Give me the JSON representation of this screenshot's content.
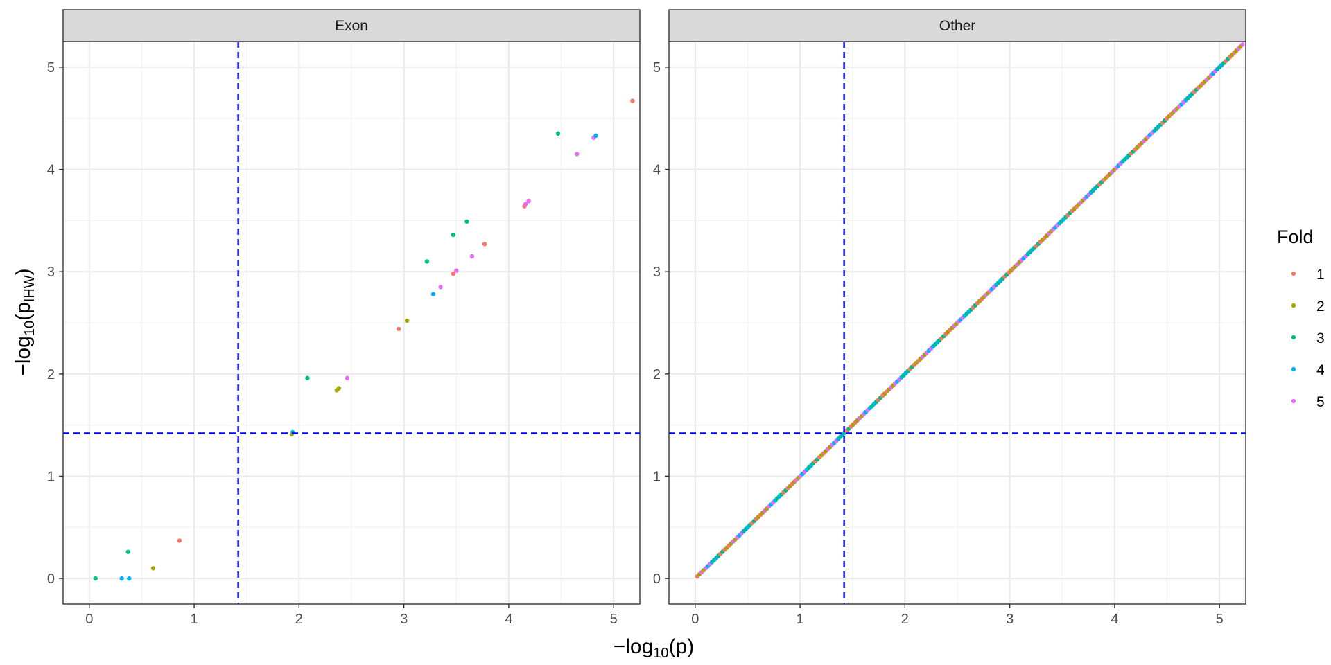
{
  "chart_data": {
    "type": "scatter",
    "facets": [
      {
        "label": "Exon",
        "points": [
          {
            "x": 0.06,
            "y": 0.0,
            "fold": "3"
          },
          {
            "x": 0.31,
            "y": 0.0,
            "fold": "4"
          },
          {
            "x": 0.38,
            "y": 0.0,
            "fold": "4"
          },
          {
            "x": 0.37,
            "y": 0.26,
            "fold": "3"
          },
          {
            "x": 0.61,
            "y": 0.1,
            "fold": "2"
          },
          {
            "x": 0.86,
            "y": 0.37,
            "fold": "1"
          },
          {
            "x": 1.93,
            "y": 1.41,
            "fold": "2"
          },
          {
            "x": 1.94,
            "y": 1.43,
            "fold": "4"
          },
          {
            "x": 2.08,
            "y": 1.96,
            "fold": "3"
          },
          {
            "x": 2.36,
            "y": 1.84,
            "fold": "2"
          },
          {
            "x": 2.38,
            "y": 1.86,
            "fold": "2"
          },
          {
            "x": 2.46,
            "y": 1.96,
            "fold": "5"
          },
          {
            "x": 2.95,
            "y": 2.44,
            "fold": "1"
          },
          {
            "x": 3.03,
            "y": 2.52,
            "fold": "2"
          },
          {
            "x": 3.22,
            "y": 3.1,
            "fold": "3"
          },
          {
            "x": 3.28,
            "y": 2.78,
            "fold": "4"
          },
          {
            "x": 3.35,
            "y": 2.85,
            "fold": "5"
          },
          {
            "x": 3.47,
            "y": 2.98,
            "fold": "1"
          },
          {
            "x": 3.47,
            "y": 3.36,
            "fold": "3"
          },
          {
            "x": 3.5,
            "y": 3.01,
            "fold": "5"
          },
          {
            "x": 3.6,
            "y": 3.49,
            "fold": "3"
          },
          {
            "x": 3.65,
            "y": 3.15,
            "fold": "5"
          },
          {
            "x": 3.77,
            "y": 3.27,
            "fold": "1"
          },
          {
            "x": 4.15,
            "y": 3.64,
            "fold": "1"
          },
          {
            "x": 4.16,
            "y": 3.66,
            "fold": "5"
          },
          {
            "x": 4.19,
            "y": 3.69,
            "fold": "5"
          },
          {
            "x": 4.47,
            "y": 4.35,
            "fold": "3"
          },
          {
            "x": 4.65,
            "y": 4.15,
            "fold": "5"
          },
          {
            "x": 4.81,
            "y": 4.31,
            "fold": "5"
          },
          {
            "x": 4.83,
            "y": 4.33,
            "fold": "4"
          },
          {
            "x": 5.18,
            "y": 4.67,
            "fold": "1"
          }
        ]
      },
      {
        "label": "Other",
        "points": [],
        "note": ""
      }
    ],
    "xlabel": "−log10(p)",
    "ylabel": "−log10(pIHW)",
    "xlim": [
      -0.25,
      5.25
    ],
    "ylim": [
      -0.25,
      5.25
    ],
    "x_ticks": [
      "0",
      "1",
      "2",
      "3",
      "4",
      "5"
    ],
    "y_ticks": [
      "0",
      "1",
      "2",
      "3",
      "4",
      "5"
    ],
    "reference_lines": {
      "x": 1.42,
      "y": 1.42,
      "color": "#0000ff",
      "style": "dashed"
    },
    "legend": {
      "title": "Fold",
      "position": "right",
      "entries": [
        {
          "label": "1",
          "color": "#F8766D"
        },
        {
          "label": "2",
          "color": "#A3A500"
        },
        {
          "label": "3",
          "color": "#00BF7D"
        },
        {
          "label": "4",
          "color": "#00B0F6"
        },
        {
          "label": "5",
          "color": "#E76BF3"
        }
      ]
    },
    "grid": true,
    "other_facet_diagonal": {
      "from": 0.02,
      "to": 5.22,
      "fold_cycle": [
        "1",
        "4",
        "2",
        "3",
        "5"
      ]
    }
  }
}
